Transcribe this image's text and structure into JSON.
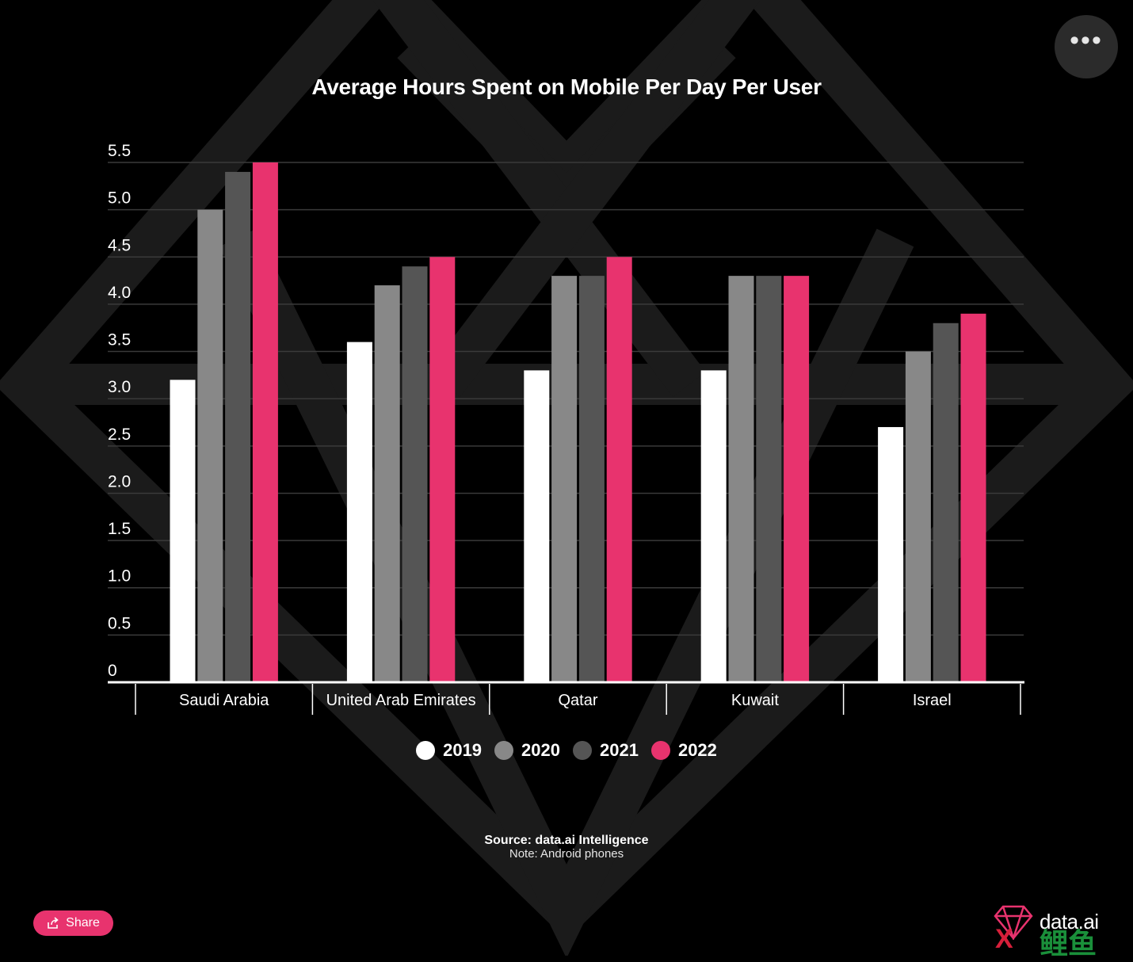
{
  "colors": {
    "background": "#000000",
    "gridline": "#3a3a3a",
    "axis": "#ffffff",
    "watermark": "#1b1b1b",
    "accent": "#e8336e"
  },
  "menu": {
    "icon": "ellipsis-icon",
    "label": "•••"
  },
  "share": {
    "label": "Share",
    "icon": "share-icon"
  },
  "source_text": "Source: data.ai Intelligence",
  "note_text": "Note: Android phones",
  "brand": {
    "name": "data.ai",
    "overlay_text": "鲤鱼",
    "overlay_mark": "X",
    "logo_icon": "diamond-logo-icon"
  },
  "chart_data": {
    "type": "bar",
    "title": "Average Hours Spent on Mobile Per Day Per User",
    "xlabel": "",
    "ylabel": "",
    "ylim": [
      0,
      5.5
    ],
    "yticks": [
      "0",
      "0.5",
      "1.0",
      "1.5",
      "2.0",
      "2.5",
      "3.0",
      "3.5",
      "4.0",
      "4.5",
      "5.0",
      "5.5"
    ],
    "grid": true,
    "legend_position": "bottom-center",
    "categories": [
      "Saudi Arabia",
      "United Arab Emirates",
      "Qatar",
      "Kuwait",
      "Israel"
    ],
    "series": [
      {
        "name": "2019",
        "color": "#ffffff",
        "values": [
          3.2,
          3.6,
          3.3,
          3.3,
          2.7
        ]
      },
      {
        "name": "2020",
        "color": "#888888",
        "values": [
          5.0,
          4.2,
          4.3,
          4.3,
          3.5
        ]
      },
      {
        "name": "2021",
        "color": "#555555",
        "values": [
          5.4,
          4.4,
          4.3,
          4.3,
          3.8
        ]
      },
      {
        "name": "2022",
        "color": "#e8336e",
        "values": [
          5.5,
          4.5,
          4.5,
          4.3,
          3.9
        ]
      }
    ]
  }
}
